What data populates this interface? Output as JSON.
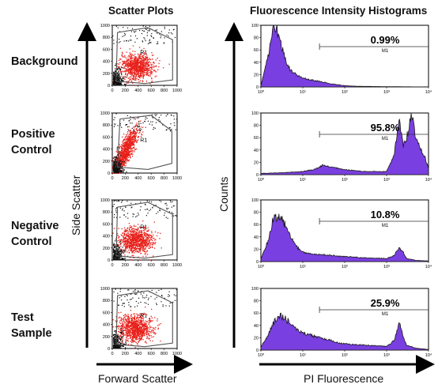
{
  "headers": {
    "scatter": "Scatter Plots",
    "hist": "Fluorescence Intensity Histograms"
  },
  "rows": [
    {
      "label_lines": [
        "Background"
      ]
    },
    {
      "label_lines": [
        "Positive",
        "Control"
      ]
    },
    {
      "label_lines": [
        "Negative",
        "Control"
      ]
    },
    {
      "label_lines": [
        "Test",
        "Sample"
      ]
    }
  ],
  "axes": {
    "scatter_x": "Forward Scatter",
    "scatter_y": "Side Scatter",
    "hist_x": "PI Fluorescence",
    "hist_y": "Counts"
  },
  "colors": {
    "points": "#e8201a",
    "dense_points": "#111111",
    "fill": "#7a3fe0",
    "line": "#1a1a1a",
    "gate": "#555555"
  },
  "chart_data": [
    {
      "type": "scatter",
      "panel": "scatter-plots",
      "xlim": [
        0,
        1000
      ],
      "ylim": [
        0,
        1000
      ],
      "xticks": [
        "0",
        "200",
        "400",
        "600",
        "800",
        "1000"
      ],
      "yticks": [
        "0",
        "200",
        "400",
        "600",
        "800",
        "1000"
      ],
      "gate_label": "R1",
      "plots": [
        {
          "row": "Background",
          "center": [
            380,
            320
          ],
          "spread": [
            230,
            190
          ]
        },
        {
          "row": "Positive Control",
          "center": [
            200,
            420
          ],
          "spread": [
            90,
            220
          ]
        },
        {
          "row": "Negative Control",
          "center": [
            360,
            330
          ],
          "spread": [
            230,
            190
          ]
        },
        {
          "row": "Test Sample",
          "center": [
            350,
            340
          ],
          "spread": [
            230,
            200
          ]
        }
      ]
    },
    {
      "type": "area",
      "panel": "fluorescence-histograms",
      "x_scale": "log",
      "xlim": [
        1,
        10000
      ],
      "ylim": [
        0,
        100
      ],
      "xticks": [
        "10⁰",
        "10¹",
        "10²",
        "10³",
        "10⁴"
      ],
      "yticks": [
        "0",
        "20",
        "40",
        "60",
        "80",
        "100"
      ],
      "marker_label": "M1",
      "marker_range": [
        25,
        10000
      ],
      "series": [
        {
          "percent": "0.99%",
          "x": [
            1,
            1.5,
            2,
            2.5,
            3,
            4,
            5,
            7,
            10,
            20,
            50,
            100,
            200,
            1000,
            10000
          ],
          "y": [
            2,
            50,
            98,
            90,
            70,
            40,
            28,
            20,
            14,
            10,
            5,
            2,
            1,
            0.5,
            0
          ]
        },
        {
          "percent": "95.8%",
          "x": [
            1,
            3,
            10,
            20,
            30,
            50,
            100,
            300,
            1000,
            1500,
            2000,
            2500,
            3000,
            4000,
            5000,
            6000,
            8000,
            10000
          ],
          "y": [
            2,
            3,
            5,
            9,
            15,
            12,
            8,
            5,
            5,
            30,
            95,
            45,
            60,
            98,
            55,
            48,
            30,
            10
          ]
        },
        {
          "percent": "10.8%",
          "x": [
            1,
            1.5,
            2,
            3,
            4,
            5,
            7,
            10,
            20,
            50,
            100,
            300,
            1000,
            1500,
            2000,
            2500,
            3000,
            5000,
            10000
          ],
          "y": [
            5,
            35,
            72,
            75,
            55,
            40,
            25,
            15,
            12,
            10,
            8,
            6,
            5,
            10,
            22,
            15,
            5,
            2,
            1
          ]
        },
        {
          "percent": "25.9%",
          "x": [
            1,
            1.5,
            2,
            3,
            4,
            5,
            7,
            10,
            20,
            50,
            100,
            300,
            1000,
            1500,
            2000,
            2500,
            3000,
            5000,
            10000
          ],
          "y": [
            5,
            25,
            45,
            55,
            50,
            42,
            35,
            28,
            22,
            15,
            10,
            8,
            6,
            15,
            45,
            20,
            8,
            3,
            1
          ]
        }
      ]
    }
  ]
}
